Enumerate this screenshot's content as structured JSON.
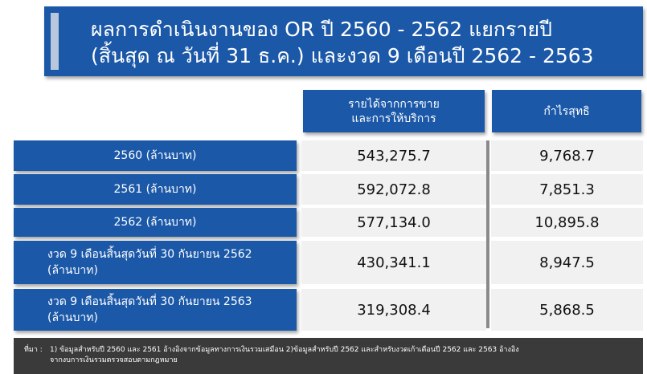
{
  "title": {
    "line1": "ผลการดำเนินงานของ OR ปี 2560 - 2562 แยกรายปี",
    "line2": "(สิ้นสุด  ณ วันที่ 31 ธ.ค.) และงวด 9 เดือนปี 2562 - 2563"
  },
  "headers": {
    "revenue_line1": "รายได้จากการขาย",
    "revenue_line2": "และการให้บริการ",
    "profit": "กำไรสุทธิ"
  },
  "rows": [
    {
      "label_line1": "2560 (ล้านบาท)",
      "label_line2": "",
      "revenue": "543,275.7",
      "profit": "9,768.7"
    },
    {
      "label_line1": "2561 (ล้านบาท)",
      "label_line2": "",
      "revenue": "592,072.8",
      "profit": "7,851.3"
    },
    {
      "label_line1": "2562 (ล้านบาท)",
      "label_line2": "",
      "revenue": "577,134.0",
      "profit": "10,895.8"
    },
    {
      "label_line1": "งวด 9 เดือนสิ้นสุดวันที่ 30 กันยายน 2562",
      "label_line2": "(ล้านบาท)",
      "revenue": "430,341.1",
      "profit": "8,947.5"
    },
    {
      "label_line1": "งวด 9 เดือนสิ้นสุดวันที่ 30 กันยายน 2563",
      "label_line2": "(ล้านบาท)",
      "revenue": "319,308.4",
      "profit": "5,868.5"
    }
  ],
  "footer": {
    "label": "ที่มา :",
    "line1": "1) ข้อมูลสำหรับปี 2560 และ 2561 อ้างอิงจากข้อมูลทางการเงินรวมเสมือน  2)ข้อมูลสำหรับปี 2562 และสำหรับงวดเก้าเดือนปี 2562 และ 2563 อ้างอิง",
    "line2": "จากงบการเงินรวมตรวจสอบตามกฎหมาย"
  },
  "colors": {
    "accent_blue": "#1b58a8",
    "cell_gray": "#f1f1f1",
    "footer_dark": "#3a3a3a"
  }
}
